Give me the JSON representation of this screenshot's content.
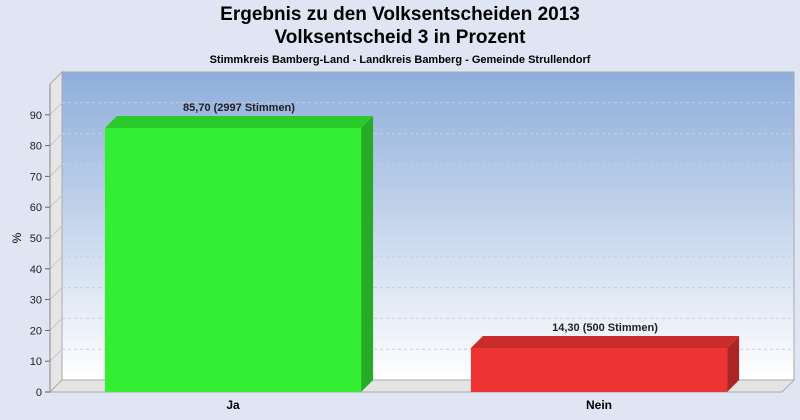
{
  "title_line1": "Ergebnis zu den Volksentscheiden 2013",
  "title_line2": "Volksentscheid 3 in Prozent",
  "subtitle": "Stimmkreis Bamberg-Land - Landkreis Bamberg - Gemeinde Strullendorf",
  "chart_data": {
    "type": "bar",
    "categories": [
      "Ja",
      "Nein"
    ],
    "values": [
      85.7,
      14.3
    ],
    "data_labels": [
      "85,70 (2997 Stimmen)",
      "14,30 (500 Stimmen)"
    ],
    "bar_colors": [
      "#33ee33",
      "#ee3333"
    ],
    "ylabel": "%",
    "ylim": [
      0,
      100
    ],
    "yticks": [
      0,
      10,
      20,
      30,
      40,
      50,
      60,
      70,
      80,
      90
    ],
    "grid": true,
    "legend": "none"
  }
}
